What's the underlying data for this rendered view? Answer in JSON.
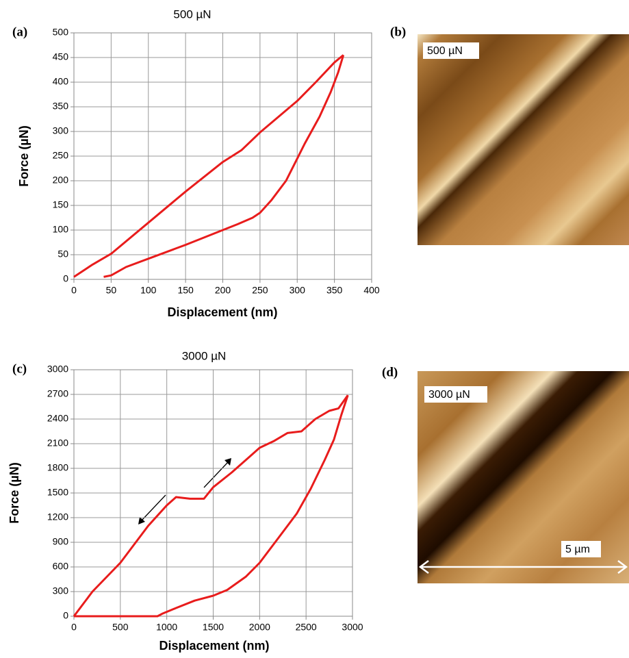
{
  "chart_data": [
    {
      "type": "line",
      "title": "500 µN",
      "xlabel": "Displacement (nm)",
      "ylabel": "Force (µN)",
      "color": "#e81c1c",
      "grid": true,
      "xlim": [
        0,
        400
      ],
      "ylim": [
        0,
        500
      ],
      "xticks": [
        0,
        50,
        100,
        150,
        200,
        250,
        300,
        350,
        400
      ],
      "yticks": [
        0,
        50,
        100,
        150,
        200,
        250,
        300,
        350,
        400,
        450,
        500
      ],
      "series": [
        {
          "x": [
            0,
            25,
            50,
            100,
            150,
            200,
            225,
            250,
            275,
            300,
            325,
            350,
            362
          ],
          "values": [
            5,
            30,
            52,
            115,
            178,
            238,
            262,
            298,
            330,
            362,
            400,
            440,
            455
          ]
        },
        {
          "x": [
            362,
            355,
            345,
            330,
            310,
            300,
            285,
            265,
            250,
            240,
            220,
            200,
            150,
            100,
            70,
            50,
            40
          ],
          "values": [
            455,
            420,
            380,
            330,
            275,
            245,
            200,
            160,
            135,
            125,
            112,
            100,
            70,
            42,
            25,
            8,
            5
          ]
        }
      ]
    },
    {
      "type": "line",
      "title": "3000 µN",
      "xlabel": "Displacement (nm)",
      "ylabel": "Force (µN)",
      "color": "#e81c1c",
      "grid": true,
      "xlim": [
        0,
        3000
      ],
      "ylim": [
        0,
        3000
      ],
      "xticks": [
        0,
        500,
        1000,
        1500,
        2000,
        2500,
        3000
      ],
      "yticks": [
        0,
        300,
        600,
        900,
        1200,
        1500,
        1800,
        2100,
        2400,
        2700,
        3000
      ],
      "series": [
        {
          "x": [
            0,
            200,
            500,
            800,
            1000,
            1100,
            1250,
            1400,
            1500,
            1700,
            1900,
            2000,
            2150,
            2300,
            2450,
            2600,
            2750,
            2850,
            2950
          ],
          "values": [
            0,
            300,
            650,
            1100,
            1350,
            1450,
            1430,
            1430,
            1570,
            1750,
            1950,
            2050,
            2130,
            2230,
            2250,
            2400,
            2500,
            2530,
            2690
          ]
        },
        {
          "x": [
            2950,
            2880,
            2800,
            2700,
            2550,
            2400,
            2200,
            2000,
            1850,
            1650,
            1500,
            1300,
            1100,
            950,
            900,
            500,
            0
          ],
          "values": [
            2690,
            2450,
            2150,
            1900,
            1550,
            1250,
            950,
            650,
            480,
            320,
            250,
            190,
            100,
            30,
            0,
            0,
            0
          ]
        }
      ]
    }
  ],
  "panel_labels": [
    "(a)",
    "(b)",
    "(c)",
    "(d)"
  ],
  "images": [
    {
      "label": "500 µN"
    },
    {
      "label": "3000 µN",
      "scale_label": "5 µm"
    }
  ]
}
